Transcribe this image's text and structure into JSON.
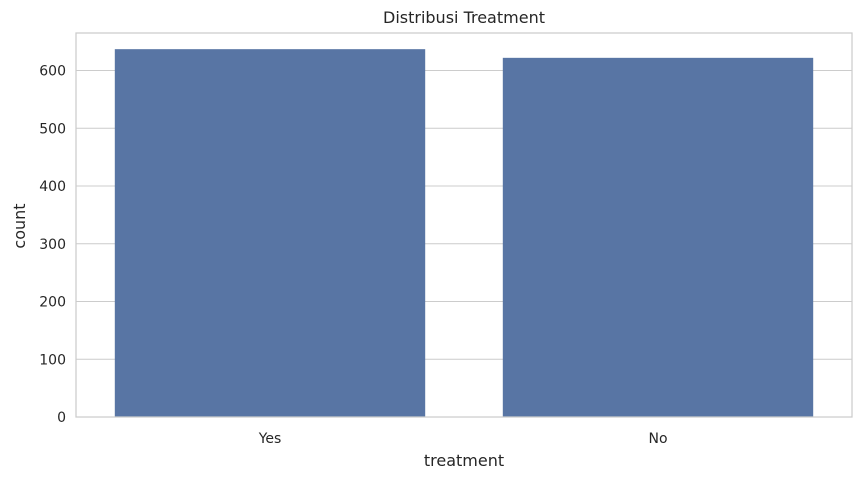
{
  "chart_data": {
    "type": "bar",
    "title": "Distribusi Treatment",
    "xlabel": "treatment",
    "ylabel": "count",
    "categories": [
      "Yes",
      "No"
    ],
    "values": [
      637,
      622
    ],
    "ylim": [
      0,
      665
    ],
    "yticks": [
      0,
      100,
      200,
      300,
      400,
      500,
      600
    ],
    "grid": true,
    "bar_color": "#5875a4",
    "grid_color": "#cccccc",
    "axes_edge_color": "#cccccc"
  }
}
